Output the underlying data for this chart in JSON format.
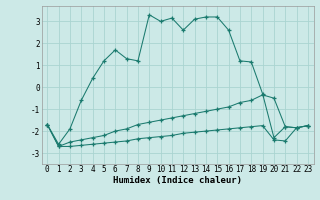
{
  "xlabel": "Humidex (Indice chaleur)",
  "background_color": "#cce9e7",
  "grid_color": "#aad4d1",
  "line_color": "#1a7a6e",
  "xlim": [
    -0.5,
    23.5
  ],
  "ylim": [
    -3.5,
    3.7
  ],
  "yticks": [
    -3,
    -2,
    -1,
    0,
    1,
    2,
    3
  ],
  "xticks": [
    0,
    1,
    2,
    3,
    4,
    5,
    6,
    7,
    8,
    9,
    10,
    11,
    12,
    13,
    14,
    15,
    16,
    17,
    18,
    19,
    20,
    21,
    22,
    23
  ],
  "series1_x": [
    0,
    1,
    2,
    3,
    4,
    5,
    6,
    7,
    8,
    9,
    10,
    11,
    12,
    13,
    14,
    15,
    16,
    17,
    18,
    19,
    20,
    21,
    22,
    23
  ],
  "series1_y": [
    -1.7,
    -2.6,
    -1.9,
    -0.6,
    0.4,
    1.2,
    1.7,
    1.3,
    1.2,
    3.3,
    3.0,
    3.15,
    2.6,
    3.1,
    3.2,
    3.2,
    2.6,
    1.2,
    1.15,
    -0.3,
    -2.3,
    -1.8,
    -1.85,
    -1.75
  ],
  "series2_x": [
    0,
    1,
    2,
    3,
    4,
    5,
    6,
    7,
    8,
    9,
    10,
    11,
    12,
    13,
    14,
    15,
    16,
    17,
    18,
    19,
    20,
    21,
    22,
    23
  ],
  "series2_y": [
    -1.7,
    -2.7,
    -2.5,
    -2.4,
    -2.3,
    -2.2,
    -2.0,
    -1.9,
    -1.7,
    -1.6,
    -1.5,
    -1.4,
    -1.3,
    -1.2,
    -1.1,
    -1.0,
    -0.9,
    -0.7,
    -0.6,
    -0.35,
    -0.5,
    -1.8,
    -1.85,
    -1.75
  ],
  "series3_x": [
    0,
    1,
    2,
    3,
    4,
    5,
    6,
    7,
    8,
    9,
    10,
    11,
    12,
    13,
    14,
    15,
    16,
    17,
    18,
    19,
    20,
    21,
    22,
    23
  ],
  "series3_y": [
    -1.7,
    -2.7,
    -2.7,
    -2.65,
    -2.6,
    -2.55,
    -2.5,
    -2.45,
    -2.35,
    -2.3,
    -2.25,
    -2.2,
    -2.1,
    -2.05,
    -2.0,
    -1.95,
    -1.9,
    -1.85,
    -1.8,
    -1.75,
    -2.4,
    -2.45,
    -1.85,
    -1.75
  ]
}
